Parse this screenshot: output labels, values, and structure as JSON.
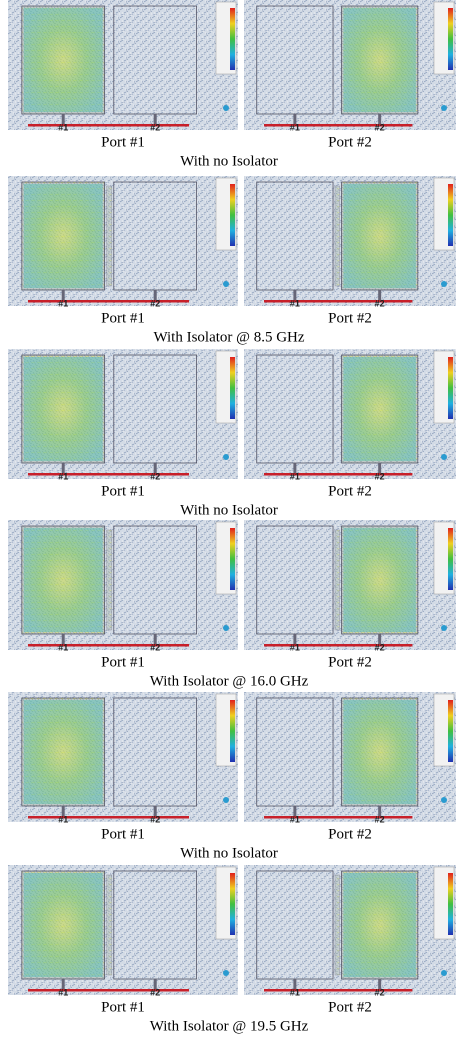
{
  "figure": {
    "rows": [
      {
        "images": [
          {
            "markers": [
              "#1",
              "#2"
            ],
            "label": "Port #1"
          },
          {
            "markers": [
              "#1",
              "#2"
            ],
            "label": "Port #2"
          }
        ],
        "caption": "With no Isolator"
      },
      {
        "images": [
          {
            "markers": [
              "#1",
              "#2"
            ],
            "label": "Port #1"
          },
          {
            "markers": [
              "#1",
              "#2"
            ],
            "label": "Port #2"
          }
        ],
        "caption": "With Isolator @ 8.5 GHz"
      },
      {
        "images": [
          {
            "markers": [
              "#1",
              "#2"
            ],
            "label": "Port #1"
          },
          {
            "markers": [
              "#1",
              "#2"
            ],
            "label": "Port #2"
          }
        ],
        "caption": "With no Isolator"
      },
      {
        "images": [
          {
            "markers": [
              "#1",
              "#2"
            ],
            "label": "Port #1"
          },
          {
            "markers": [
              "#1",
              "#2"
            ],
            "label": "Port #2"
          }
        ],
        "caption": "With Isolator @ 16.0 GHz"
      },
      {
        "images": [
          {
            "markers": [
              "#1",
              "#2"
            ],
            "label": "Port #1"
          },
          {
            "markers": [
              "#1",
              "#2"
            ],
            "label": "Port #2"
          }
        ],
        "caption": "With no Isolator"
      },
      {
        "images": [
          {
            "markers": [
              "#1",
              "#2"
            ],
            "label": "Port #1"
          },
          {
            "markers": [
              "#1",
              "#2"
            ],
            "label": "Port #2"
          }
        ],
        "caption": "With Isolator @ 19.5 GHz"
      }
    ]
  }
}
